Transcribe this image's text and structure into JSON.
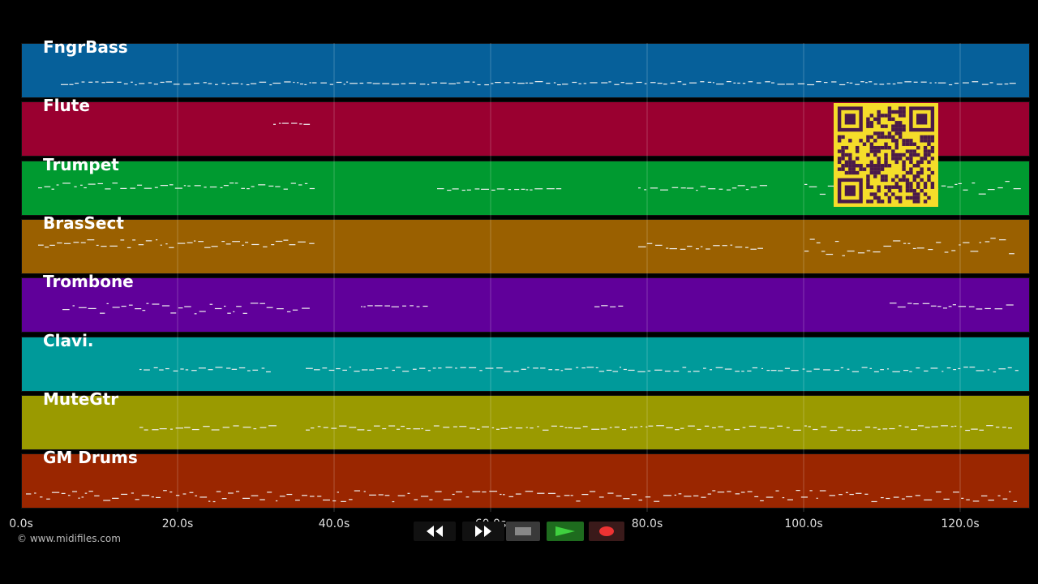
{
  "tracks": [
    {
      "name": "FngrBass",
      "color": "#06609a"
    },
    {
      "name": "Flute",
      "color": "#9a0030"
    },
    {
      "name": "Trumpet",
      "color": "#009a30"
    },
    {
      "name": "BrasSect",
      "color": "#9a6000"
    },
    {
      "name": "Trombone",
      "color": "#60009a"
    },
    {
      "name": "Clavi.",
      "color": "#009a9a"
    },
    {
      "name": "MuteGtr",
      "color": "#9a9a00"
    },
    {
      "name": "GM Drums",
      "color": "#9a2600"
    }
  ],
  "timeline": {
    "ticks": [
      "0.0s",
      "20.0s",
      "40.0s",
      "60.0s",
      "80.0s",
      "100.0s",
      "120.0s"
    ]
  },
  "copyright": "© www.midifiles.com",
  "transport": {
    "rewind": "rewind-icon",
    "fast_forward": "fast-forward-icon",
    "stop": "stop-icon",
    "play": "play-icon",
    "record": "record-icon"
  },
  "colors": {
    "stop_bg": "#3a3a3a",
    "play_bg": "#1e6b1e",
    "record_bg": "#3a1a1a",
    "qr_bg": "#f5dd2a",
    "qr_fg": "#4a1a4a"
  }
}
